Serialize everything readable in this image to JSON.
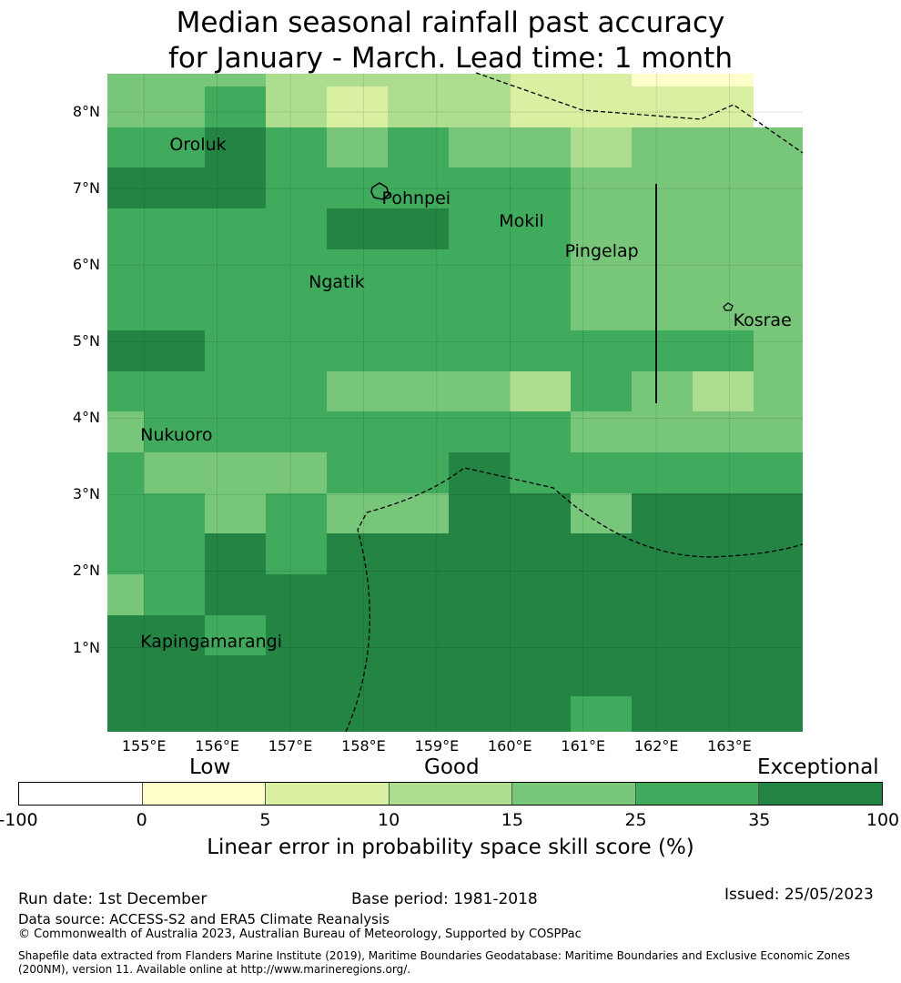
{
  "title_line1": "Median seasonal rainfall past accuracy",
  "title_line2": "for January - March. Lead time: 1 month",
  "map": {
    "lon_range": [
      154.5,
      164.0
    ],
    "lat_range": [
      -0.1,
      8.5
    ],
    "cell_size_deg": 0.833,
    "lat_ticks": [
      {
        "value": 8,
        "label": "8°N"
      },
      {
        "value": 7,
        "label": "7°N"
      },
      {
        "value": 6,
        "label": "6°N"
      },
      {
        "value": 5,
        "label": "5°N"
      },
      {
        "value": 4,
        "label": "4°N"
      },
      {
        "value": 3,
        "label": "3°N"
      },
      {
        "value": 2,
        "label": "2°N"
      },
      {
        "value": 1,
        "label": "1°N"
      }
    ],
    "lon_ticks": [
      {
        "value": 155,
        "label": "155°E"
      },
      {
        "value": 156,
        "label": "156°E"
      },
      {
        "value": 157,
        "label": "157°E"
      },
      {
        "value": 158,
        "label": "158°E"
      },
      {
        "value": 159,
        "label": "159°E"
      },
      {
        "value": 160,
        "label": "160°E"
      },
      {
        "value": 161,
        "label": "161°E"
      },
      {
        "value": 162,
        "label": "162°E"
      },
      {
        "value": 163,
        "label": "163°E"
      }
    ],
    "skill_grid_note": "rows north to south, columns west to east; values are colour class index 0-6",
    "skill_grid": [
      [
        4,
        4,
        4,
        3,
        3,
        3,
        3,
        2,
        2,
        1,
        1,
        0
      ],
      [
        4,
        4,
        5,
        3,
        2,
        3,
        3,
        2,
        2,
        2,
        2,
        0
      ],
      [
        5,
        5,
        6,
        5,
        4,
        5,
        4,
        4,
        3,
        4,
        4,
        4
      ],
      [
        6,
        6,
        6,
        5,
        5,
        5,
        5,
        5,
        4,
        4,
        4,
        4
      ],
      [
        5,
        5,
        5,
        5,
        6,
        6,
        5,
        5,
        4,
        4,
        4,
        4
      ],
      [
        5,
        5,
        5,
        5,
        5,
        5,
        5,
        5,
        4,
        4,
        4,
        4
      ],
      [
        5,
        5,
        5,
        5,
        5,
        5,
        5,
        5,
        4,
        4,
        4,
        4
      ],
      [
        6,
        6,
        5,
        5,
        5,
        5,
        5,
        5,
        5,
        5,
        5,
        4
      ],
      [
        5,
        5,
        5,
        5,
        4,
        4,
        4,
        3,
        5,
        4,
        3,
        4
      ],
      [
        4,
        5,
        5,
        5,
        5,
        5,
        5,
        5,
        4,
        4,
        4,
        4
      ],
      [
        5,
        4,
        4,
        4,
        5,
        5,
        6,
        5,
        5,
        5,
        5,
        5
      ],
      [
        5,
        5,
        4,
        5,
        4,
        4,
        6,
        6,
        4,
        6,
        6,
        6
      ],
      [
        5,
        5,
        6,
        5,
        6,
        6,
        6,
        6,
        6,
        6,
        6,
        6
      ],
      [
        4,
        5,
        6,
        6,
        6,
        6,
        6,
        6,
        6,
        6,
        6,
        6
      ],
      [
        6,
        6,
        5,
        6,
        6,
        6,
        6,
        6,
        6,
        6,
        6,
        6
      ],
      [
        6,
        6,
        6,
        6,
        6,
        6,
        6,
        6,
        6,
        6,
        6,
        6
      ],
      [
        6,
        6,
        6,
        6,
        6,
        6,
        6,
        6,
        5,
        6,
        6,
        6
      ]
    ],
    "places": [
      {
        "name": "Oroluk",
        "lon": 155.3,
        "lat": 7.6
      },
      {
        "name": "Pohnpei",
        "lon": 158.2,
        "lat": 6.9
      },
      {
        "name": "Mokil",
        "lon": 159.8,
        "lat": 6.6
      },
      {
        "name": "Pingelap",
        "lon": 160.7,
        "lat": 6.2
      },
      {
        "name": "Ngatik",
        "lon": 157.2,
        "lat": 5.8
      },
      {
        "name": "Kosrae",
        "lon": 163.0,
        "lat": 5.3
      },
      {
        "name": "Nukuoro",
        "lon": 154.9,
        "lat": 3.8
      },
      {
        "name": "Kapingamarangi",
        "lon": 154.9,
        "lat": 1.1
      }
    ]
  },
  "legend": {
    "categories": {
      "low": "Low",
      "good": "Good",
      "exceptional": "Exceptional"
    },
    "colors": [
      "#ffffff",
      "#ffffcc",
      "#d9f0a3",
      "#addd8e",
      "#78c679",
      "#41ab5d",
      "#238443"
    ],
    "ticks": [
      "-100",
      "0",
      "5",
      "10",
      "15",
      "25",
      "35",
      "100"
    ],
    "title": "Linear error in probability space skill score (%)"
  },
  "footer": {
    "run_date": "Run date: 1st December",
    "base_period": "Base period: 1981-2018",
    "issued": "Issued: 25/05/2023",
    "data_source": "Data source: ACCESS-S2 and ERA5 Climate Reanalysis",
    "copyright": "© Commonwealth of Australia 2023, Australian Bureau of Meteorology, Supported by COSPPac",
    "shapefile_line1": "Shapefile data extracted from Flanders Marine Institute (2019), Maritime Boundaries Geodatabase: Maritime Boundaries and Exclusive Economic Zones",
    "shapefile_line2": "(200NM), version 11. Available online at http://www.marineregions.org/."
  }
}
